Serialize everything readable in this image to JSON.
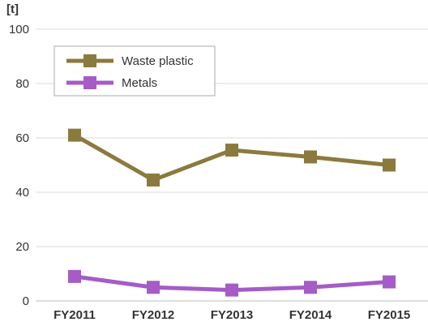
{
  "chart_data": {
    "type": "line",
    "unit_label": "[t]",
    "categories": [
      "FY2011",
      "FY2012",
      "FY2013",
      "FY2014",
      "FY2015"
    ],
    "y_ticks": [
      "0",
      "20",
      "40",
      "60",
      "80",
      "100"
    ],
    "ylim": [
      0,
      100
    ],
    "grid": true,
    "legend_position": "top-left",
    "series": [
      {
        "name": "Waste plastic",
        "color": "#8b7a3e",
        "values": [
          61,
          44.5,
          55.5,
          53,
          50
        ]
      },
      {
        "name": "Metals",
        "color": "#a55cc6",
        "values": [
          9,
          5,
          4,
          5,
          7
        ]
      }
    ]
  }
}
